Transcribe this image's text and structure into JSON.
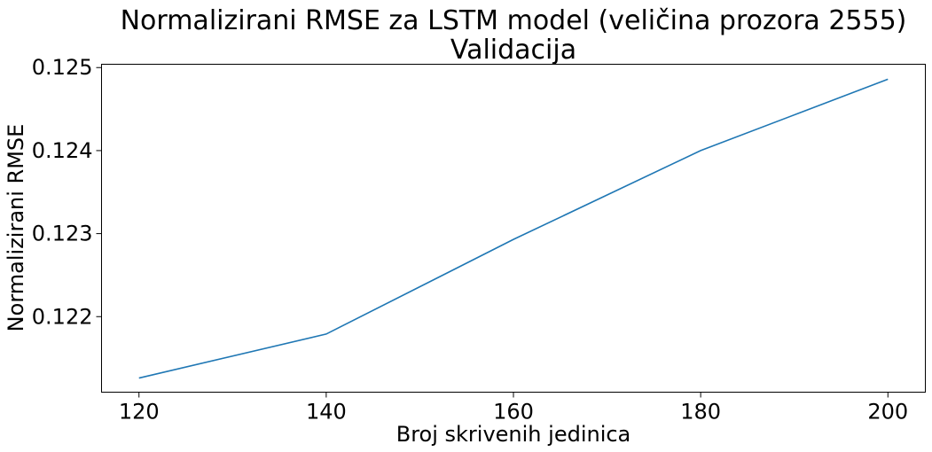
{
  "chart_data": {
    "type": "line",
    "title_line1": "Normalizirani RMSE za LSTM model (veličina prozora 2555)",
    "title_line2": "Validacija",
    "xlabel": "Broj skrivenih jedinica",
    "ylabel": "Normalizirani RMSE",
    "x": [
      120,
      140,
      160,
      180,
      200
    ],
    "series": [
      {
        "values": [
          0.12126,
          0.12179,
          0.12293,
          0.124,
          0.12486
        ]
      }
    ],
    "xticks": [
      120,
      140,
      160,
      180,
      200
    ],
    "xtick_labels": [
      "120",
      "140",
      "160",
      "180",
      "200"
    ],
    "yticks": [
      0.122,
      0.123,
      0.124,
      0.125
    ],
    "ytick_labels": [
      "0.122",
      "0.123",
      "0.124",
      "0.125"
    ],
    "xlim": [
      116,
      204
    ],
    "ylim": [
      0.12109,
      0.12504
    ],
    "grid": false,
    "line_color": "#1f77b4"
  }
}
